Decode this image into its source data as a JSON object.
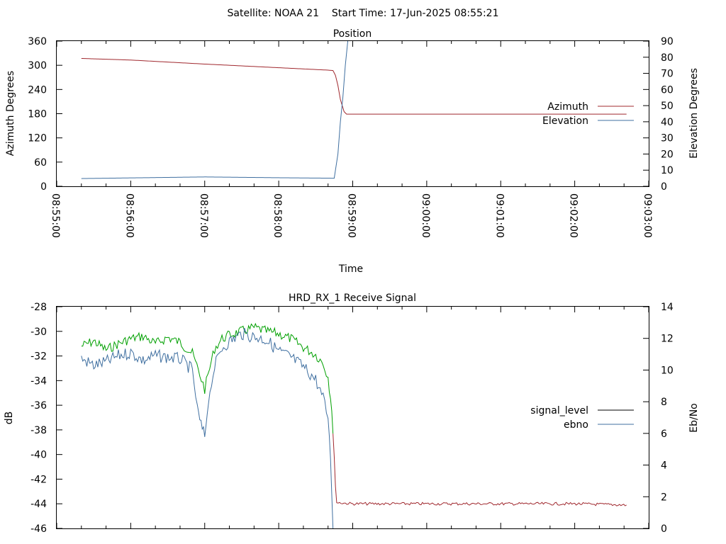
{
  "header": {
    "title": "Satellite: NOAA 21    Start Time: 17-Jun-2025 08:55:21"
  },
  "chart_data": [
    {
      "type": "line",
      "title": "Position",
      "xlabel": "Time",
      "ylabel": "Azimuth Degrees",
      "y2label": "Elevation Degrees",
      "x_ticks": [
        "08:55:00",
        "08:56:00",
        "08:57:00",
        "08:58:00",
        "08:59:00",
        "09:00:00",
        "09:01:00",
        "09:02:00",
        "09:03:00"
      ],
      "xlim": [
        "08:55:00",
        "09:03:00"
      ],
      "ylim": [
        0,
        360
      ],
      "y_ticks": [
        0,
        60,
        120,
        180,
        240,
        300,
        360
      ],
      "y2lim": [
        0,
        90
      ],
      "y2_ticks": [
        0,
        10,
        20,
        30,
        40,
        50,
        60,
        70,
        80,
        90
      ],
      "legend_position": "right",
      "grid": false,
      "series": [
        {
          "name": "Azimuth",
          "axis": "left",
          "color": "#a0282e",
          "points": [
            [
              "08:55:20",
              317
            ],
            [
              "08:56:00",
              313
            ],
            [
              "08:57:00",
              303
            ],
            [
              "08:58:00",
              294
            ],
            [
              "08:58:40",
              288
            ],
            [
              "08:58:44",
              287
            ],
            [
              "08:58:46",
              275
            ],
            [
              "08:58:48",
              250
            ],
            [
              "08:58:50",
              215
            ],
            [
              "08:58:53",
              185
            ],
            [
              "08:58:55",
              179
            ],
            [
              "09:00:00",
              179
            ],
            [
              "09:01:00",
              179
            ],
            [
              "09:02:00",
              179
            ],
            [
              "09:02:42",
              179
            ]
          ]
        },
        {
          "name": "Elevation",
          "axis": "right",
          "color": "#3f6fa0",
          "points": [
            [
              "08:55:20",
              4.8
            ],
            [
              "08:56:00",
              5.2
            ],
            [
              "08:57:00",
              5.8
            ],
            [
              "08:58:00",
              5.3
            ],
            [
              "08:58:45",
              5.0
            ],
            [
              "08:58:48",
              20
            ],
            [
              "08:58:50",
              40
            ],
            [
              "08:58:52",
              55
            ],
            [
              "08:58:54",
              75
            ],
            [
              "08:58:56",
              90
            ]
          ]
        }
      ]
    },
    {
      "type": "line",
      "title": "HRD_RX_1 Receive Signal",
      "ylabel": "dB",
      "y2label": "Eb/No",
      "xlim": [
        "08:55:00",
        "09:03:00"
      ],
      "ylim": [
        -46,
        -28
      ],
      "y_ticks": [
        -46,
        -44,
        -42,
        -40,
        -38,
        -36,
        -34,
        -32,
        -30,
        -28
      ],
      "y2lim": [
        0,
        14
      ],
      "y2_ticks": [
        0,
        2,
        4,
        6,
        8,
        10,
        12,
        14
      ],
      "legend_position": "right",
      "grid": false,
      "series": [
        {
          "name": "signal_level",
          "axis": "left",
          "color": "#000000",
          "segment_colors": {
            "locked": "#00a000",
            "unlocked": "#a0282e"
          },
          "points": [
            [
              "08:55:20",
              -31.2
            ],
            [
              "08:55:30",
              -30.8
            ],
            [
              "08:55:40",
              -31.5
            ],
            [
              "08:55:50",
              -31.0
            ],
            [
              "08:56:00",
              -30.6
            ],
            [
              "08:56:10",
              -30.4
            ],
            [
              "08:56:20",
              -31.0
            ],
            [
              "08:56:30",
              -30.5
            ],
            [
              "08:56:40",
              -30.9
            ],
            [
              "08:56:50",
              -31.8
            ],
            [
              "08:56:56",
              -33.5
            ],
            [
              "08:57:00",
              -34.7
            ],
            [
              "08:57:04",
              -33.0
            ],
            [
              "08:57:08",
              -31.4
            ],
            [
              "08:57:14",
              -30.6
            ],
            [
              "08:57:20",
              -30.3
            ],
            [
              "08:57:30",
              -30.0
            ],
            [
              "08:57:40",
              -29.7
            ],
            [
              "08:57:50",
              -30.0
            ],
            [
              "08:58:00",
              -30.2
            ],
            [
              "08:58:10",
              -30.6
            ],
            [
              "08:58:20",
              -31.3
            ],
            [
              "08:58:30",
              -31.9
            ],
            [
              "08:58:36",
              -32.6
            ],
            [
              "08:58:40",
              -33.7
            ],
            [
              "08:58:43",
              -36.2
            ],
            [
              "08:58:45",
              -40.5
            ],
            [
              "08:58:47",
              -43.9
            ],
            [
              "08:59:00",
              -44.0
            ],
            [
              "09:00:00",
              -44.0
            ],
            [
              "09:01:00",
              -44.0
            ],
            [
              "09:02:00",
              -44.0
            ],
            [
              "09:02:42",
              -44.1
            ]
          ]
        },
        {
          "name": "ebno",
          "axis": "right",
          "color": "#3f6fa0",
          "points": [
            [
              "08:55:20",
              10.7
            ],
            [
              "08:55:30",
              10.3
            ],
            [
              "08:55:40",
              10.5
            ],
            [
              "08:55:50",
              10.9
            ],
            [
              "08:56:00",
              11.1
            ],
            [
              "08:56:10",
              10.6
            ],
            [
              "08:56:20",
              10.9
            ],
            [
              "08:56:30",
              10.8
            ],
            [
              "08:56:40",
              10.7
            ],
            [
              "08:56:50",
              10.0
            ],
            [
              "08:56:54",
              7.5
            ],
            [
              "08:56:57",
              6.5
            ],
            [
              "08:57:00",
              5.8
            ],
            [
              "08:57:03",
              8.0
            ],
            [
              "08:57:08",
              10.2
            ],
            [
              "08:57:14",
              11.4
            ],
            [
              "08:57:20",
              11.8
            ],
            [
              "08:57:30",
              12.3
            ],
            [
              "08:57:40",
              12.1
            ],
            [
              "08:57:50",
              11.9
            ],
            [
              "08:58:00",
              11.2
            ],
            [
              "08:58:10",
              10.8
            ],
            [
              "08:58:20",
              10.2
            ],
            [
              "08:58:30",
              9.4
            ],
            [
              "08:58:36",
              8.2
            ],
            [
              "08:58:40",
              7.0
            ],
            [
              "08:58:42",
              4.5
            ],
            [
              "08:58:44",
              0.0
            ]
          ]
        }
      ]
    }
  ]
}
